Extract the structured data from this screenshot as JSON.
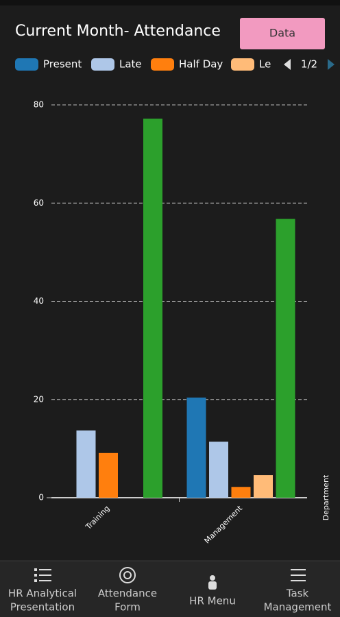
{
  "chart_data": {
    "type": "bar",
    "title": "Current Month- Attendance",
    "categories": [
      "Training",
      "Management"
    ],
    "series": [
      {
        "name": "Present",
        "color": "#1f77b4",
        "values": [
          0,
          20.4
        ]
      },
      {
        "name": "Late",
        "color": "#aec7e8",
        "values": [
          13.7,
          11.4
        ]
      },
      {
        "name": "Half Day",
        "color": "#ff7f0e",
        "values": [
          9.1,
          2.2
        ]
      },
      {
        "name": "Le",
        "color": "#ffbb78",
        "values": [
          0,
          4.6
        ]
      },
      {
        "color": "#2ca02c",
        "values": [
          77.2,
          56.8
        ]
      }
    ],
    "x_label": "Department",
    "ylim": [
      0,
      80
    ],
    "yticks": [
      0,
      20,
      40,
      60,
      80
    ],
    "grid": true
  },
  "header": {
    "button": "Data"
  },
  "legend_pager": "1/2",
  "nav": [
    {
      "label": [
        "HR Analytical",
        "Presentation"
      ]
    },
    {
      "label": [
        "Attendance",
        "Form"
      ]
    },
    {
      "label": [
        "HR Menu"
      ]
    },
    {
      "label": [
        "Task",
        "Management"
      ]
    }
  ]
}
